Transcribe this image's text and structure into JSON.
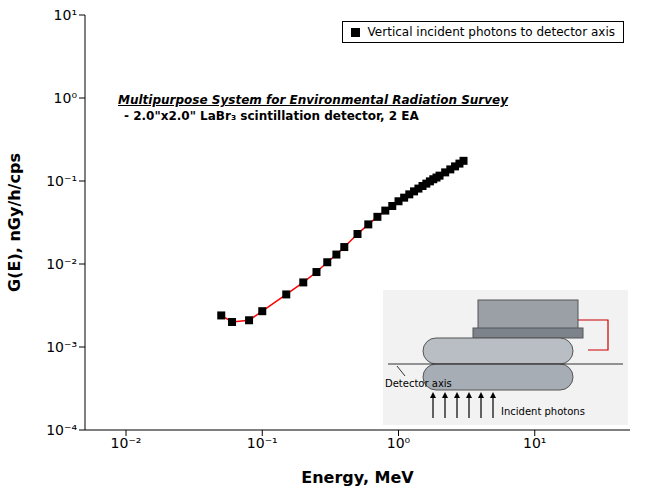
{
  "chart_data": {
    "type": "scatter",
    "log": true,
    "grid": false,
    "legend": "upper right",
    "xlabel": "Energy, MeV",
    "ylabel": "G(E), nGy/h/cps",
    "annotations": [
      "Multipurpose System for Environmental Radiation Survey",
      "- 2.0\"x2.0\" LaBr₃ scintillation detector, 2 EA",
      "Detector axis",
      "Incident photons"
    ],
    "xlim": [
      0.005,
      50
    ],
    "xticks": [
      {
        "value": 0.01,
        "label": "10⁻²"
      },
      {
        "value": 0.1,
        "label": "10⁻¹"
      },
      {
        "value": 1,
        "label": "10⁰"
      },
      {
        "value": 10,
        "label": "10¹"
      }
    ],
    "ylim": [
      0.0001,
      10
    ],
    "yticks": [
      {
        "value": 0.0001,
        "label": "10⁻⁴"
      },
      {
        "value": 0.001,
        "label": "10⁻³"
      },
      {
        "value": 0.01,
        "label": "10⁻²"
      },
      {
        "value": 0.1,
        "label": "10⁻¹"
      },
      {
        "value": 1,
        "label": "10⁰"
      },
      {
        "value": 10,
        "label": "10¹"
      }
    ],
    "x": [
      0.05,
      0.06,
      0.08,
      0.1,
      0.15,
      0.2,
      0.25,
      0.3,
      0.35,
      0.4,
      0.5,
      0.6,
      0.7,
      0.8,
      0.9,
      1.0,
      1.1,
      1.2,
      1.3,
      1.4,
      1.5,
      1.6,
      1.7,
      1.8,
      1.9,
      2.0,
      2.2,
      2.4,
      2.6,
      2.8,
      3.0
    ],
    "series": [
      {
        "name": "Vertical incident photons to detector axis",
        "type": "scatter",
        "marker": "square",
        "color": "#000000",
        "values": [
          0.0024,
          0.002,
          0.0021,
          0.0027,
          0.0043,
          0.006,
          0.008,
          0.0105,
          0.013,
          0.016,
          0.023,
          0.03,
          0.037,
          0.044,
          0.05,
          0.057,
          0.063,
          0.069,
          0.075,
          0.081,
          0.087,
          0.093,
          0.099,
          0.105,
          0.11,
          0.116,
          0.127,
          0.138,
          0.15,
          0.162,
          0.175
        ]
      },
      {
        "type": "line",
        "line_style": "solid",
        "color": "#ff0000",
        "values": [
          0.0024,
          0.002,
          0.0021,
          0.0027,
          0.0043,
          0.006,
          0.008,
          0.0105,
          0.013,
          0.016,
          0.023,
          0.03,
          0.037,
          0.044,
          0.05,
          0.057,
          0.063,
          0.069,
          0.075,
          0.081,
          0.087,
          0.093,
          0.099,
          0.105,
          0.11,
          0.116,
          0.127,
          0.138,
          0.15,
          0.162,
          0.175
        ]
      }
    ]
  }
}
